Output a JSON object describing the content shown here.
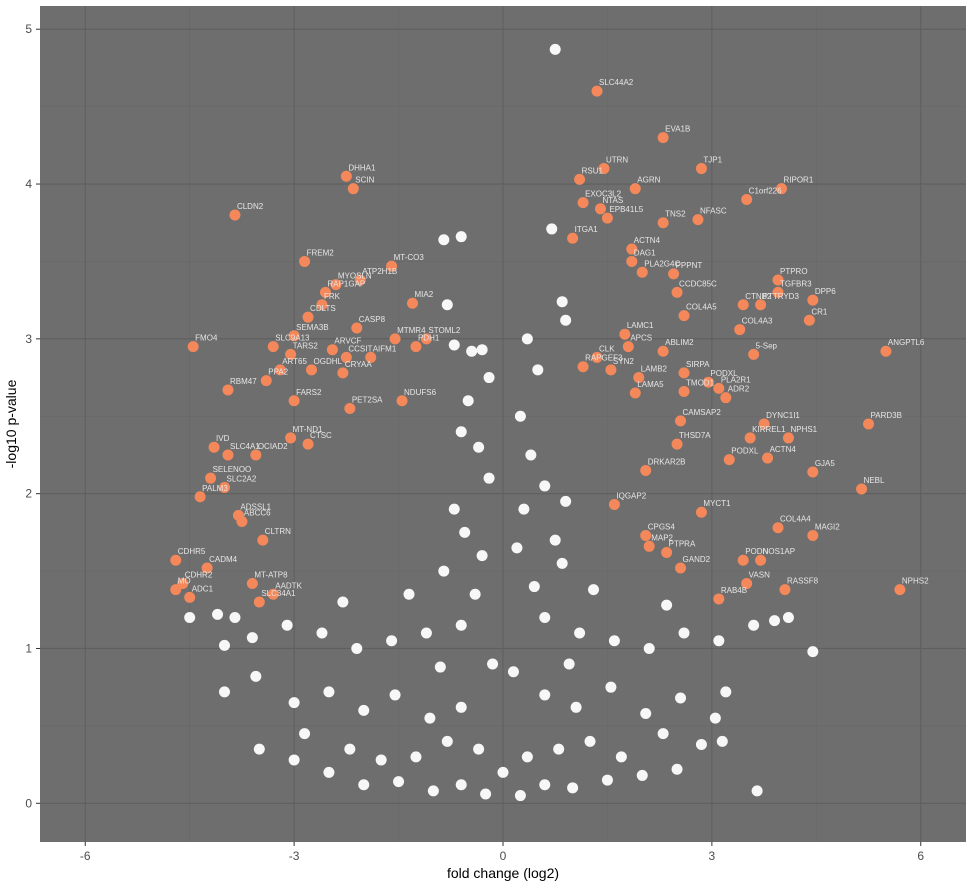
{
  "chart_data": {
    "type": "scatter",
    "title": "",
    "xlabel": "fold change (log2)",
    "ylabel": "-log10 p-value",
    "xlim": [
      -6.65,
      6.65
    ],
    "ylim": [
      -0.25,
      5.15
    ],
    "x_ticks": [
      -6,
      -3,
      0,
      3,
      6
    ],
    "x_tick_labels": [
      "-6",
      "-3",
      "0",
      "3",
      "6"
    ],
    "y_ticks": [
      0,
      1,
      2,
      3,
      4,
      5
    ],
    "y_tick_labels": [
      "0",
      "1",
      "2",
      "3",
      "4",
      "5"
    ],
    "grid": true,
    "legend": "none",
    "colors": {
      "panel": "#6e6e6e",
      "grid_major": "#5f5f5f",
      "grid_minor": "#676767",
      "significant": "#f4885a",
      "nonsignificant": "#f7f7f7",
      "label": "#e6e6e6"
    },
    "significant": [
      {
        "label": "SLC44A2",
        "x": 1.35,
        "y": 4.6
      },
      {
        "label": "EVA1B",
        "x": 2.3,
        "y": 4.3
      },
      {
        "label": "UTRN",
        "x": 1.45,
        "y": 4.1
      },
      {
        "label": "TJP1",
        "x": 2.85,
        "y": 4.1
      },
      {
        "label": "RSU1",
        "x": 1.1,
        "y": 4.03
      },
      {
        "label": "AGRN",
        "x": 1.9,
        "y": 3.97
      },
      {
        "label": "RIPOR1",
        "x": 4.0,
        "y": 3.97
      },
      {
        "label": "C1orf226",
        "x": 3.5,
        "y": 3.9
      },
      {
        "label": "EXOC3L2",
        "x": 1.15,
        "y": 3.88
      },
      {
        "label": "NTAS",
        "x": 1.4,
        "y": 3.84
      },
      {
        "label": "EPB41L5",
        "x": 1.5,
        "y": 3.78
      },
      {
        "label": "TNS2",
        "x": 2.3,
        "y": 3.75
      },
      {
        "label": "NFASC",
        "x": 2.8,
        "y": 3.77
      },
      {
        "label": "ITGA1",
        "x": 1.0,
        "y": 3.65
      },
      {
        "label": "ACTN4",
        "x": 1.85,
        "y": 3.58
      },
      {
        "label": "DAG1",
        "x": 1.85,
        "y": 3.5
      },
      {
        "label": "PLA2G4C",
        "x": 2.0,
        "y": 3.43
      },
      {
        "label": "PPPNT",
        "x": 2.45,
        "y": 3.42
      },
      {
        "label": "PTPRO",
        "x": 3.95,
        "y": 3.38
      },
      {
        "label": "TGFBR3",
        "x": 3.95,
        "y": 3.3
      },
      {
        "label": "DPP6",
        "x": 4.45,
        "y": 3.25
      },
      {
        "label": "PTTRYD3",
        "x": 3.7,
        "y": 3.22
      },
      {
        "label": "CTNB2",
        "x": 3.45,
        "y": 3.22
      },
      {
        "label": "CCDC85C",
        "x": 2.5,
        "y": 3.3
      },
      {
        "label": "CR1",
        "x": 4.4,
        "y": 3.12
      },
      {
        "label": "COL4A5",
        "x": 2.6,
        "y": 3.15
      },
      {
        "label": "COL4A3",
        "x": 3.4,
        "y": 3.06
      },
      {
        "label": "ANGPTL6",
        "x": 5.5,
        "y": 2.92
      },
      {
        "label": "5-Sep",
        "x": 3.6,
        "y": 2.9
      },
      {
        "label": "ABLIM2",
        "x": 2.3,
        "y": 2.92
      },
      {
        "label": "APCS",
        "x": 1.8,
        "y": 2.95
      },
      {
        "label": "LAMC1",
        "x": 1.75,
        "y": 3.03
      },
      {
        "label": "CLK",
        "x": 1.35,
        "y": 2.88
      },
      {
        "label": "SIRPA",
        "x": 2.6,
        "y": 2.78
      },
      {
        "label": "RAPGEF3",
        "x": 1.15,
        "y": 2.82
      },
      {
        "label": "SYN2",
        "x": 1.55,
        "y": 2.8
      },
      {
        "label": "LAMB2",
        "x": 1.95,
        "y": 2.75
      },
      {
        "label": "PODXL",
        "x": 2.95,
        "y": 2.72
      },
      {
        "label": "PLA2R1",
        "x": 3.1,
        "y": 2.68
      },
      {
        "label": "TMOD1",
        "x": 2.6,
        "y": 2.66
      },
      {
        "label": "ADR2",
        "x": 3.2,
        "y": 2.62
      },
      {
        "label": "LAMA5",
        "x": 1.9,
        "y": 2.65
      },
      {
        "label": "NPHS1",
        "x": 4.1,
        "y": 2.36
      },
      {
        "label": "PARD3B",
        "x": 5.25,
        "y": 2.45
      },
      {
        "label": "DYNC1I1",
        "x": 3.75,
        "y": 2.45
      },
      {
        "label": "CAMSAP2",
        "x": 2.55,
        "y": 2.47
      },
      {
        "label": "KIRREL1",
        "x": 3.55,
        "y": 2.36
      },
      {
        "label": "ACTN4",
        "x": 3.8,
        "y": 2.23
      },
      {
        "label": "THSD7A",
        "x": 2.5,
        "y": 2.32
      },
      {
        "label": "PODXL",
        "x": 3.25,
        "y": 2.22
      },
      {
        "label": "GJA5",
        "x": 4.45,
        "y": 2.14
      },
      {
        "label": "DRKAR2B",
        "x": 2.05,
        "y": 2.15
      },
      {
        "label": "NEBL",
        "x": 5.15,
        "y": 2.03
      },
      {
        "label": "MYCT1",
        "x": 2.85,
        "y": 1.88
      },
      {
        "label": "COL4A4",
        "x": 3.95,
        "y": 1.78
      },
      {
        "label": "MAGI2",
        "x": 4.45,
        "y": 1.73
      },
      {
        "label": "CPGS4",
        "x": 2.05,
        "y": 1.73
      },
      {
        "label": "MAP2",
        "x": 2.1,
        "y": 1.66
      },
      {
        "label": "PTPRA",
        "x": 2.35,
        "y": 1.62
      },
      {
        "label": "PODN",
        "x": 3.45,
        "y": 1.57
      },
      {
        "label": "NOS1AP",
        "x": 3.7,
        "y": 1.57
      },
      {
        "label": "GAND2",
        "x": 2.55,
        "y": 1.52
      },
      {
        "label": "NPHS2",
        "x": 5.7,
        "y": 1.38
      },
      {
        "label": "VASN",
        "x": 3.5,
        "y": 1.42
      },
      {
        "label": "RASSF8",
        "x": 4.05,
        "y": 1.38
      },
      {
        "label": "RAB4B",
        "x": 3.1,
        "y": 1.32
      },
      {
        "label": "IQGAP2",
        "x": 1.6,
        "y": 1.93
      },
      {
        "label": "CLDN2",
        "x": -3.85,
        "y": 3.8
      },
      {
        "label": "DHHA1",
        "x": -2.25,
        "y": 4.05
      },
      {
        "label": "SCIN",
        "x": -2.15,
        "y": 3.97
      },
      {
        "label": "FREM2",
        "x": -2.85,
        "y": 3.5
      },
      {
        "label": "MT-CO3",
        "x": -1.6,
        "y": 3.47
      },
      {
        "label": "ATP2H1B",
        "x": -2.05,
        "y": 3.38
      },
      {
        "label": "MYOSLN",
        "x": -2.4,
        "y": 3.35
      },
      {
        "label": "RAP1GAP",
        "x": -2.55,
        "y": 3.3
      },
      {
        "label": "FRK",
        "x": -2.6,
        "y": 3.22
      },
      {
        "label": "MIA2",
        "x": -1.3,
        "y": 3.23
      },
      {
        "label": "CDLTS",
        "x": -2.8,
        "y": 3.14
      },
      {
        "label": "CASP8",
        "x": -2.1,
        "y": 3.07
      },
      {
        "label": "SEMA3B",
        "x": -3.0,
        "y": 3.02
      },
      {
        "label": "STOML2",
        "x": -1.1,
        "y": 3.0
      },
      {
        "label": "FMO4",
        "x": -4.45,
        "y": 2.95
      },
      {
        "label": "SLC9A13",
        "x": -3.3,
        "y": 2.95
      },
      {
        "label": "TARS2",
        "x": -3.05,
        "y": 2.9
      },
      {
        "label": "ARVCF",
        "x": -2.45,
        "y": 2.93
      },
      {
        "label": "CCSIT",
        "x": -2.25,
        "y": 2.88
      },
      {
        "label": "MTMR4",
        "x": -1.55,
        "y": 3.0
      },
      {
        "label": "PDH1",
        "x": -1.25,
        "y": 2.95
      },
      {
        "label": "AIFM1",
        "x": -1.9,
        "y": 2.88
      },
      {
        "label": "OGDHL",
        "x": -2.75,
        "y": 2.8
      },
      {
        "label": "ART65",
        "x": -3.2,
        "y": 2.8
      },
      {
        "label": "CRYAA",
        "x": -2.3,
        "y": 2.78
      },
      {
        "label": "PPA2",
        "x": -3.4,
        "y": 2.73
      },
      {
        "label": "RBM47",
        "x": -3.95,
        "y": 2.67
      },
      {
        "label": "FARS2",
        "x": -3.0,
        "y": 2.6
      },
      {
        "label": "NDUFS6",
        "x": -1.45,
        "y": 2.6
      },
      {
        "label": "PET2SA",
        "x": -2.2,
        "y": 2.55
      },
      {
        "label": "MT-ND1",
        "x": -3.05,
        "y": 2.36
      },
      {
        "label": "CTSC",
        "x": -2.8,
        "y": 2.32
      },
      {
        "label": "IVD",
        "x": -4.15,
        "y": 2.3
      },
      {
        "label": "SLC4A1",
        "x": -3.95,
        "y": 2.25
      },
      {
        "label": "OCIAD2",
        "x": -3.55,
        "y": 2.25
      },
      {
        "label": "SELENOO",
        "x": -4.2,
        "y": 2.1
      },
      {
        "label": "SLC2A2",
        "x": -4.0,
        "y": 2.04
      },
      {
        "label": "PALM3",
        "x": -4.35,
        "y": 1.98
      },
      {
        "label": "ADSSL1",
        "x": -3.8,
        "y": 1.86
      },
      {
        "label": "ABCC6",
        "x": -3.75,
        "y": 1.82
      },
      {
        "label": "CDHR5",
        "x": -4.7,
        "y": 1.57
      },
      {
        "label": "CADM4",
        "x": -4.25,
        "y": 1.52
      },
      {
        "label": "CDHR2",
        "x": -4.6,
        "y": 1.42
      },
      {
        "label": "ADC1",
        "x": -4.5,
        "y": 1.33
      },
      {
        "label": "MO",
        "x": -4.7,
        "y": 1.38
      },
      {
        "label": "CLTRN",
        "x": -3.45,
        "y": 1.7
      },
      {
        "label": "SLC34A1",
        "x": -3.5,
        "y": 1.3
      },
      {
        "label": "MT-ATP8",
        "x": -3.6,
        "y": 1.42
      },
      {
        "label": "AADTK",
        "x": -3.3,
        "y": 1.35
      }
    ],
    "nonsignificant": [
      {
        "x": 0.75,
        "y": 4.87
      },
      {
        "x": -0.6,
        "y": 3.66
      },
      {
        "x": -0.85,
        "y": 3.64
      },
      {
        "x": 0.7,
        "y": 3.71
      },
      {
        "x": -0.8,
        "y": 3.22
      },
      {
        "x": 0.85,
        "y": 3.24
      },
      {
        "x": -0.3,
        "y": 2.93
      },
      {
        "x": -0.45,
        "y": 2.92
      },
      {
        "x": 0.35,
        "y": 3.0
      },
      {
        "x": -0.2,
        "y": 2.75
      },
      {
        "x": 0.9,
        "y": 3.12
      },
      {
        "x": -0.7,
        "y": 2.96
      },
      {
        "x": -0.5,
        "y": 2.6
      },
      {
        "x": 0.5,
        "y": 2.8
      },
      {
        "x": -0.6,
        "y": 2.4
      },
      {
        "x": 0.25,
        "y": 2.5
      },
      {
        "x": -0.35,
        "y": 2.3
      },
      {
        "x": 0.4,
        "y": 2.25
      },
      {
        "x": -0.2,
        "y": 2.1
      },
      {
        "x": 0.6,
        "y": 2.05
      },
      {
        "x": 0.9,
        "y": 1.95
      },
      {
        "x": -0.7,
        "y": 1.9
      },
      {
        "x": 0.3,
        "y": 1.9
      },
      {
        "x": -0.55,
        "y": 1.75
      },
      {
        "x": 0.75,
        "y": 1.7
      },
      {
        "x": 0.2,
        "y": 1.65
      },
      {
        "x": -0.3,
        "y": 1.6
      },
      {
        "x": 0.85,
        "y": 1.55
      },
      {
        "x": -0.85,
        "y": 1.5
      },
      {
        "x": -4.5,
        "y": 1.2
      },
      {
        "x": -4.1,
        "y": 1.22
      },
      {
        "x": -3.85,
        "y": 1.2
      },
      {
        "x": -4.0,
        "y": 1.02
      },
      {
        "x": -3.6,
        "y": 1.07
      },
      {
        "x": -3.1,
        "y": 1.15
      },
      {
        "x": -2.6,
        "y": 1.1
      },
      {
        "x": -2.1,
        "y": 1.0
      },
      {
        "x": -1.6,
        "y": 1.05
      },
      {
        "x": -1.1,
        "y": 1.1
      },
      {
        "x": -0.6,
        "y": 1.15
      },
      {
        "x": 0.6,
        "y": 1.2
      },
      {
        "x": 1.1,
        "y": 1.1
      },
      {
        "x": 1.6,
        "y": 1.05
      },
      {
        "x": 2.1,
        "y": 1.0
      },
      {
        "x": 2.6,
        "y": 1.1
      },
      {
        "x": 3.1,
        "y": 1.05
      },
      {
        "x": 3.6,
        "y": 1.15
      },
      {
        "x": 4.1,
        "y": 1.2
      },
      {
        "x": 4.45,
        "y": 0.98
      },
      {
        "x": 3.9,
        "y": 1.18
      },
      {
        "x": -4.0,
        "y": 0.72
      },
      {
        "x": -3.55,
        "y": 0.82
      },
      {
        "x": -3.0,
        "y": 0.65
      },
      {
        "x": -2.5,
        "y": 0.72
      },
      {
        "x": -2.0,
        "y": 0.6
      },
      {
        "x": -1.55,
        "y": 0.7
      },
      {
        "x": -1.05,
        "y": 0.55
      },
      {
        "x": -0.6,
        "y": 0.62
      },
      {
        "x": 0.6,
        "y": 0.7
      },
      {
        "x": 1.05,
        "y": 0.62
      },
      {
        "x": 1.55,
        "y": 0.75
      },
      {
        "x": 2.05,
        "y": 0.58
      },
      {
        "x": 2.55,
        "y": 0.68
      },
      {
        "x": 3.05,
        "y": 0.55
      },
      {
        "x": 3.2,
        "y": 0.72
      },
      {
        "x": 3.65,
        "y": 0.08
      },
      {
        "x": 3.15,
        "y": 0.4
      },
      {
        "x": 2.85,
        "y": 0.38
      },
      {
        "x": 2.5,
        "y": 0.22
      },
      {
        "x": 2.0,
        "y": 0.18
      },
      {
        "x": 1.5,
        "y": 0.15
      },
      {
        "x": 1.0,
        "y": 0.1
      },
      {
        "x": 0.6,
        "y": 0.12
      },
      {
        "x": 0.25,
        "y": 0.05
      },
      {
        "x": -0.25,
        "y": 0.06
      },
      {
        "x": -0.6,
        "y": 0.12
      },
      {
        "x": -1.0,
        "y": 0.08
      },
      {
        "x": -1.5,
        "y": 0.14
      },
      {
        "x": -2.0,
        "y": 0.12
      },
      {
        "x": -2.5,
        "y": 0.2
      },
      {
        "x": -3.0,
        "y": 0.28
      },
      {
        "x": -3.5,
        "y": 0.35
      },
      {
        "x": -2.85,
        "y": 0.45
      },
      {
        "x": -2.2,
        "y": 0.35
      },
      {
        "x": -1.75,
        "y": 0.28
      },
      {
        "x": -1.25,
        "y": 0.3
      },
      {
        "x": -0.8,
        "y": 0.4
      },
      {
        "x": -0.35,
        "y": 0.35
      },
      {
        "x": 0.0,
        "y": 0.2
      },
      {
        "x": 0.35,
        "y": 0.3
      },
      {
        "x": 0.8,
        "y": 0.35
      },
      {
        "x": 1.25,
        "y": 0.4
      },
      {
        "x": 1.7,
        "y": 0.3
      },
      {
        "x": 2.3,
        "y": 0.45
      },
      {
        "x": -0.15,
        "y": 0.9
      },
      {
        "x": 0.15,
        "y": 0.85
      },
      {
        "x": -0.4,
        "y": 1.35
      },
      {
        "x": 0.45,
        "y": 1.4
      },
      {
        "x": -0.9,
        "y": 0.88
      },
      {
        "x": 0.95,
        "y": 0.9
      },
      {
        "x": -1.35,
        "y": 1.35
      },
      {
        "x": 1.3,
        "y": 1.38
      },
      {
        "x": -2.3,
        "y": 1.3
      },
      {
        "x": 2.35,
        "y": 1.28
      }
    ]
  }
}
